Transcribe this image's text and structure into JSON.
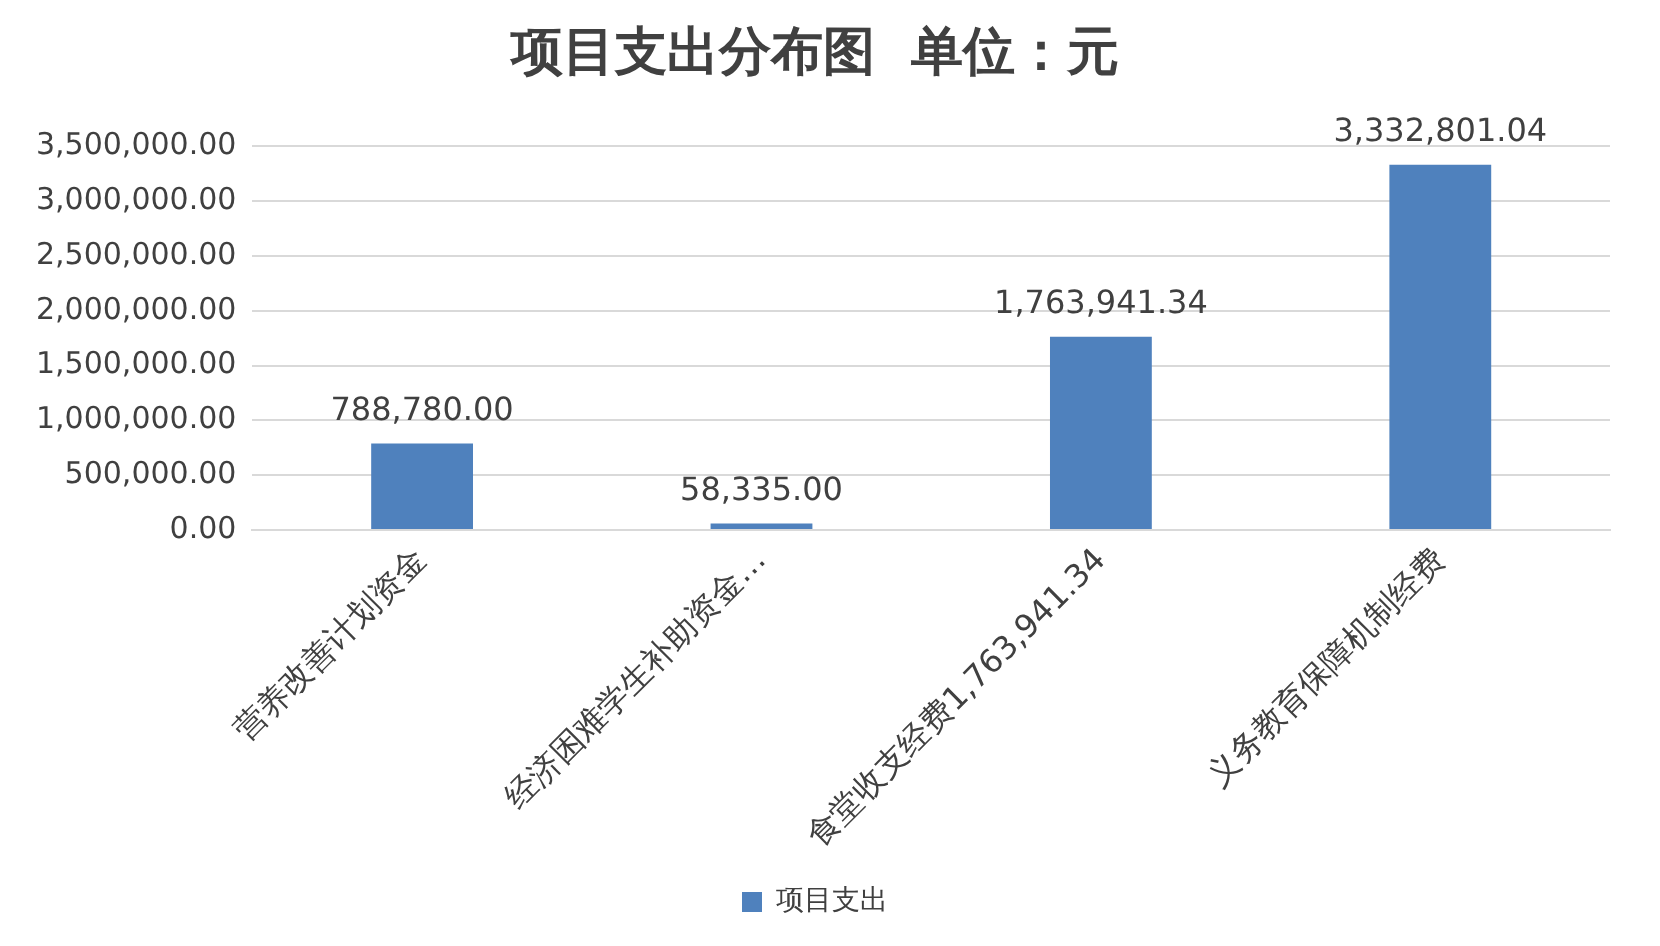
{
  "chart_data": {
    "type": "bar",
    "title": "项目支出分布图  单位：元",
    "categories": [
      "营养改善计划资金",
      "经济困难学生补助资金…",
      "食堂收支经费1,763,941.34",
      "义务教育保障机制经费"
    ],
    "series": [
      {
        "name": "项目支出",
        "color": "#4f81bd",
        "values": [
          788780,
          58335,
          1763941.34,
          3332801.04
        ],
        "value_labels": [
          "788,780.00",
          "58,335.00",
          "1,763,941.34",
          "3,332,801.04"
        ]
      }
    ],
    "ylim": [
      0,
      3500000
    ],
    "yticks": [
      {
        "value": 0,
        "label": "0.00"
      },
      {
        "value": 500000,
        "label": "500,000.00"
      },
      {
        "value": 1000000,
        "label": "1,000,000.00"
      },
      {
        "value": 1500000,
        "label": "1,500,000.00"
      },
      {
        "value": 2000000,
        "label": "2,000,000.00"
      },
      {
        "value": 2500000,
        "label": "2,500,000.00"
      },
      {
        "value": 3000000,
        "label": "3,000,000.00"
      },
      {
        "value": 3500000,
        "label": "3,500,000.00"
      }
    ],
    "grid": "y",
    "legend": "bottom"
  }
}
